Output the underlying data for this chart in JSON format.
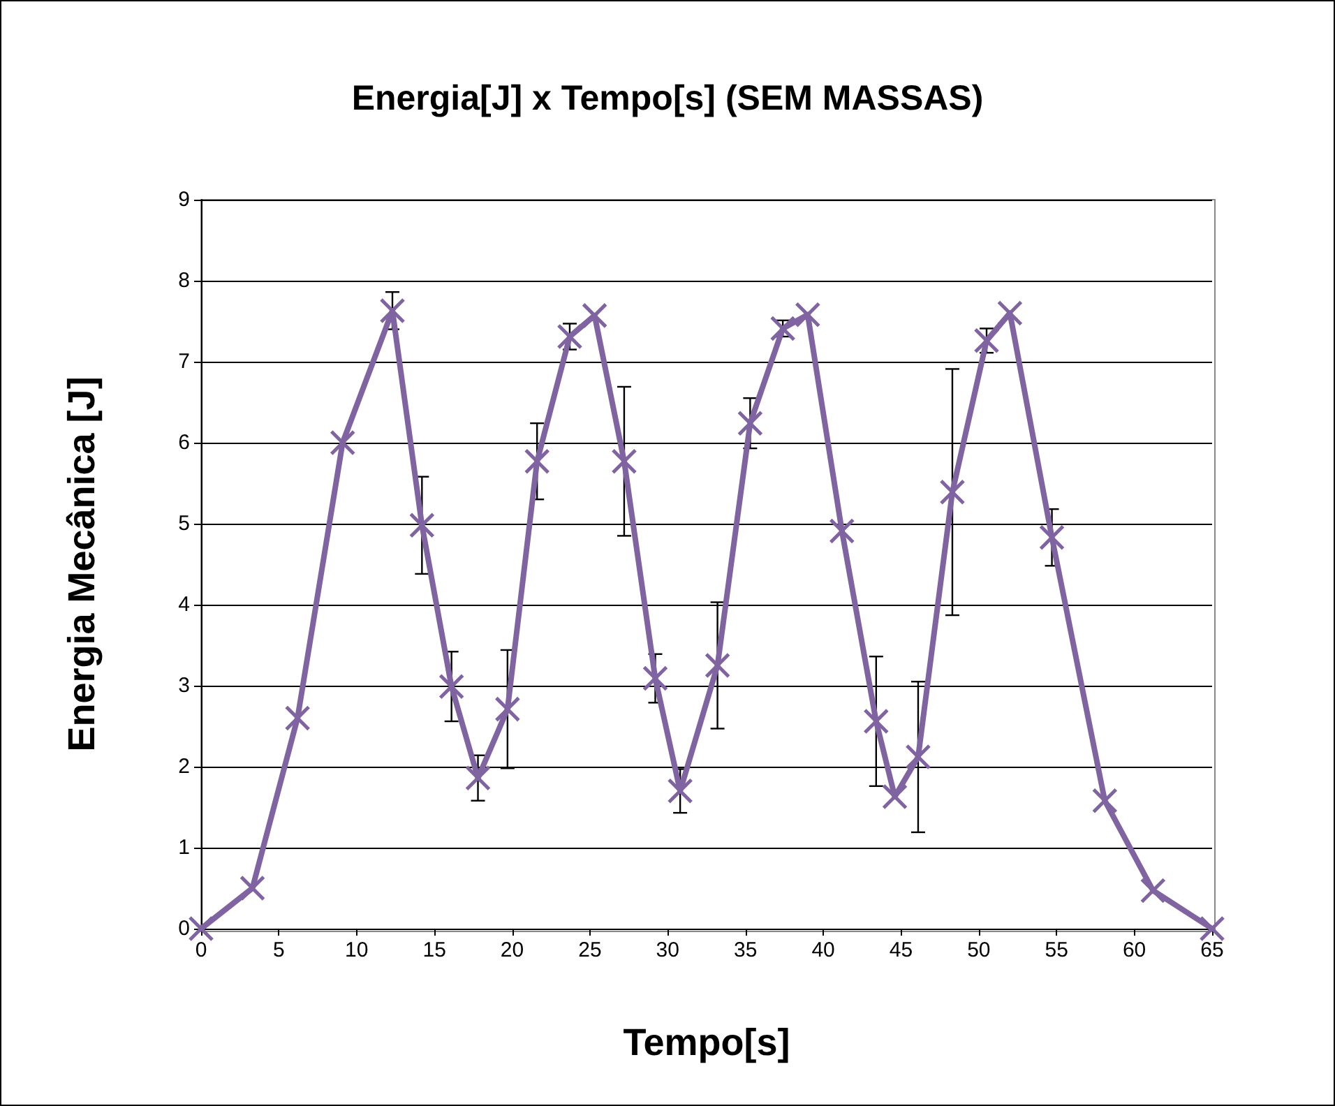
{
  "chart_data": {
    "type": "line",
    "title": "Energia[J] x Tempo[s] (SEM MASSAS)",
    "xlabel": "Tempo[s]",
    "ylabel": "Energia Mecânica [J]",
    "x": [
      0,
      3.3,
      6.2,
      9.1,
      12.3,
      14.2,
      16.1,
      17.8,
      19.7,
      21.6,
      23.7,
      25.3,
      27.2,
      29.2,
      30.8,
      33.2,
      35.3,
      37.4,
      39.0,
      41.2,
      43.4,
      44.6,
      46.1,
      48.3,
      50.5,
      52.0,
      54.7,
      58.1,
      61.2,
      65
    ],
    "series": [
      {
        "color": "#8064a2",
        "values": [
          0,
          0.5,
          2.6,
          6.0,
          7.63,
          4.98,
          2.99,
          1.86,
          2.71,
          5.77,
          7.31,
          7.57,
          5.77,
          3.09,
          1.7,
          3.25,
          6.24,
          7.41,
          7.58,
          4.91,
          2.56,
          1.63,
          2.12,
          5.39,
          7.26,
          7.6,
          4.83,
          1.58,
          0.47,
          0
        ],
        "errors": [
          null,
          null,
          null,
          null,
          0.23,
          0.6,
          0.43,
          0.28,
          0.73,
          0.47,
          0.16,
          null,
          0.92,
          0.3,
          0.27,
          0.78,
          0.31,
          0.1,
          null,
          null,
          0.8,
          null,
          0.93,
          1.52,
          0.15,
          null,
          0.35,
          null,
          null,
          null
        ]
      }
    ],
    "xlim": [
      0,
      65
    ],
    "xticks": [
      0,
      5,
      10,
      15,
      20,
      25,
      30,
      35,
      40,
      45,
      50,
      55,
      60,
      65
    ],
    "ylim": [
      0,
      9
    ],
    "yticks": [
      0,
      1,
      2,
      3,
      4,
      5,
      6,
      7,
      8,
      9
    ],
    "grid": "y",
    "marker": "cross",
    "line_style": "solid"
  }
}
